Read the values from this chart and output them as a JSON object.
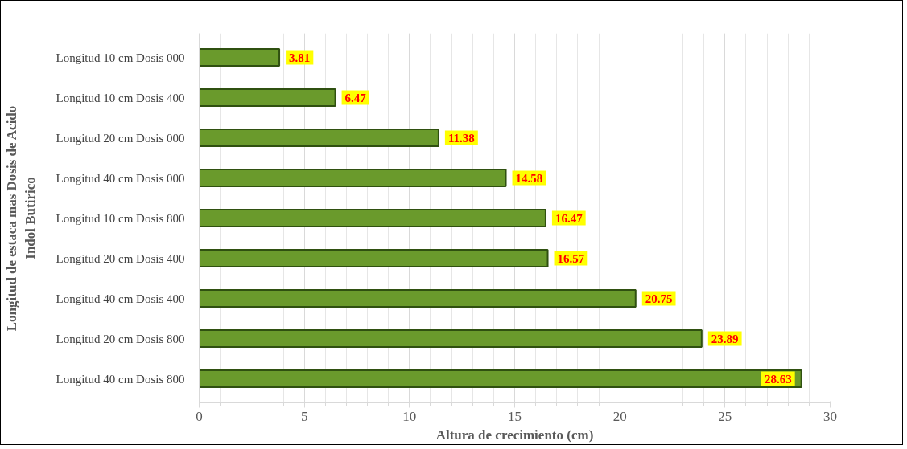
{
  "chart_data": {
    "type": "bar",
    "orientation": "horizontal",
    "xlabel": "Altura de crecimiento (cm)",
    "ylabel": "Longitud de estaca mas Dosis de Acido\nIndol Butirico",
    "categories": [
      "Longitud 10 cm Dosis 000",
      "Longitud 10 cm Dosis 400",
      "Longitud 20 cm Dosis 000",
      "Longitud 40 cm Dosis 000",
      "Longitud 10 cm Dosis 800",
      "Longitud 20 cm Dosis 400",
      "Longitud 40 cm Dosis 400",
      "Longitud 20 cm Dosis 800",
      "Longitud 40 cm Dosis 800"
    ],
    "values": [
      3.81,
      6.47,
      11.38,
      14.58,
      16.47,
      16.57,
      20.75,
      23.89,
      28.63
    ],
    "color": "#6a9a2c",
    "xlim": [
      0,
      30
    ],
    "xticks": [
      0,
      5,
      10,
      15,
      20,
      25,
      30
    ],
    "grid": "x",
    "data_labels": true
  }
}
